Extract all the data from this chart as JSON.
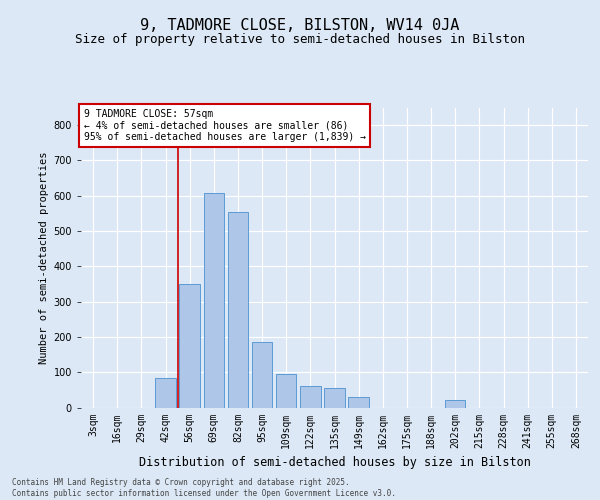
{
  "title": "9, TADMORE CLOSE, BILSTON, WV14 0JA",
  "subtitle": "Size of property relative to semi-detached houses in Bilston",
  "xlabel": "Distribution of semi-detached houses by size in Bilston",
  "ylabel": "Number of semi-detached properties",
  "annotation_title": "9 TADMORE CLOSE: 57sqm",
  "annotation_line1": "← 4% of semi-detached houses are smaller (86)",
  "annotation_line2": "95% of semi-detached houses are larger (1,839) →",
  "categories": [
    "3sqm",
    "16sqm",
    "29sqm",
    "42sqm",
    "56sqm",
    "69sqm",
    "82sqm",
    "95sqm",
    "109sqm",
    "122sqm",
    "135sqm",
    "149sqm",
    "162sqm",
    "175sqm",
    "188sqm",
    "202sqm",
    "215sqm",
    "228sqm",
    "241sqm",
    "255sqm",
    "268sqm"
  ],
  "values": [
    0,
    0,
    0,
    85,
    350,
    608,
    555,
    185,
    95,
    60,
    55,
    30,
    0,
    0,
    0,
    20,
    0,
    0,
    0,
    0,
    0
  ],
  "bar_color": "#aec6e8",
  "bar_edge_color": "#5b9bd5",
  "vline_color": "#cc0000",
  "vline_x": 3.5,
  "annotation_box_color": "#cc0000",
  "background_color": "#dce8f5",
  "plot_bg_color": "#dce8f5",
  "grid_color": "#ffffff",
  "ylim": [
    0,
    850
  ],
  "yticks": [
    0,
    100,
    200,
    300,
    400,
    500,
    600,
    700,
    800
  ],
  "footer": "Contains HM Land Registry data © Crown copyright and database right 2025.\nContains public sector information licensed under the Open Government Licence v3.0.",
  "title_fontsize": 11,
  "subtitle_fontsize": 9,
  "ylabel_fontsize": 7.5,
  "xlabel_fontsize": 8.5,
  "tick_fontsize": 7,
  "annotation_fontsize": 7
}
